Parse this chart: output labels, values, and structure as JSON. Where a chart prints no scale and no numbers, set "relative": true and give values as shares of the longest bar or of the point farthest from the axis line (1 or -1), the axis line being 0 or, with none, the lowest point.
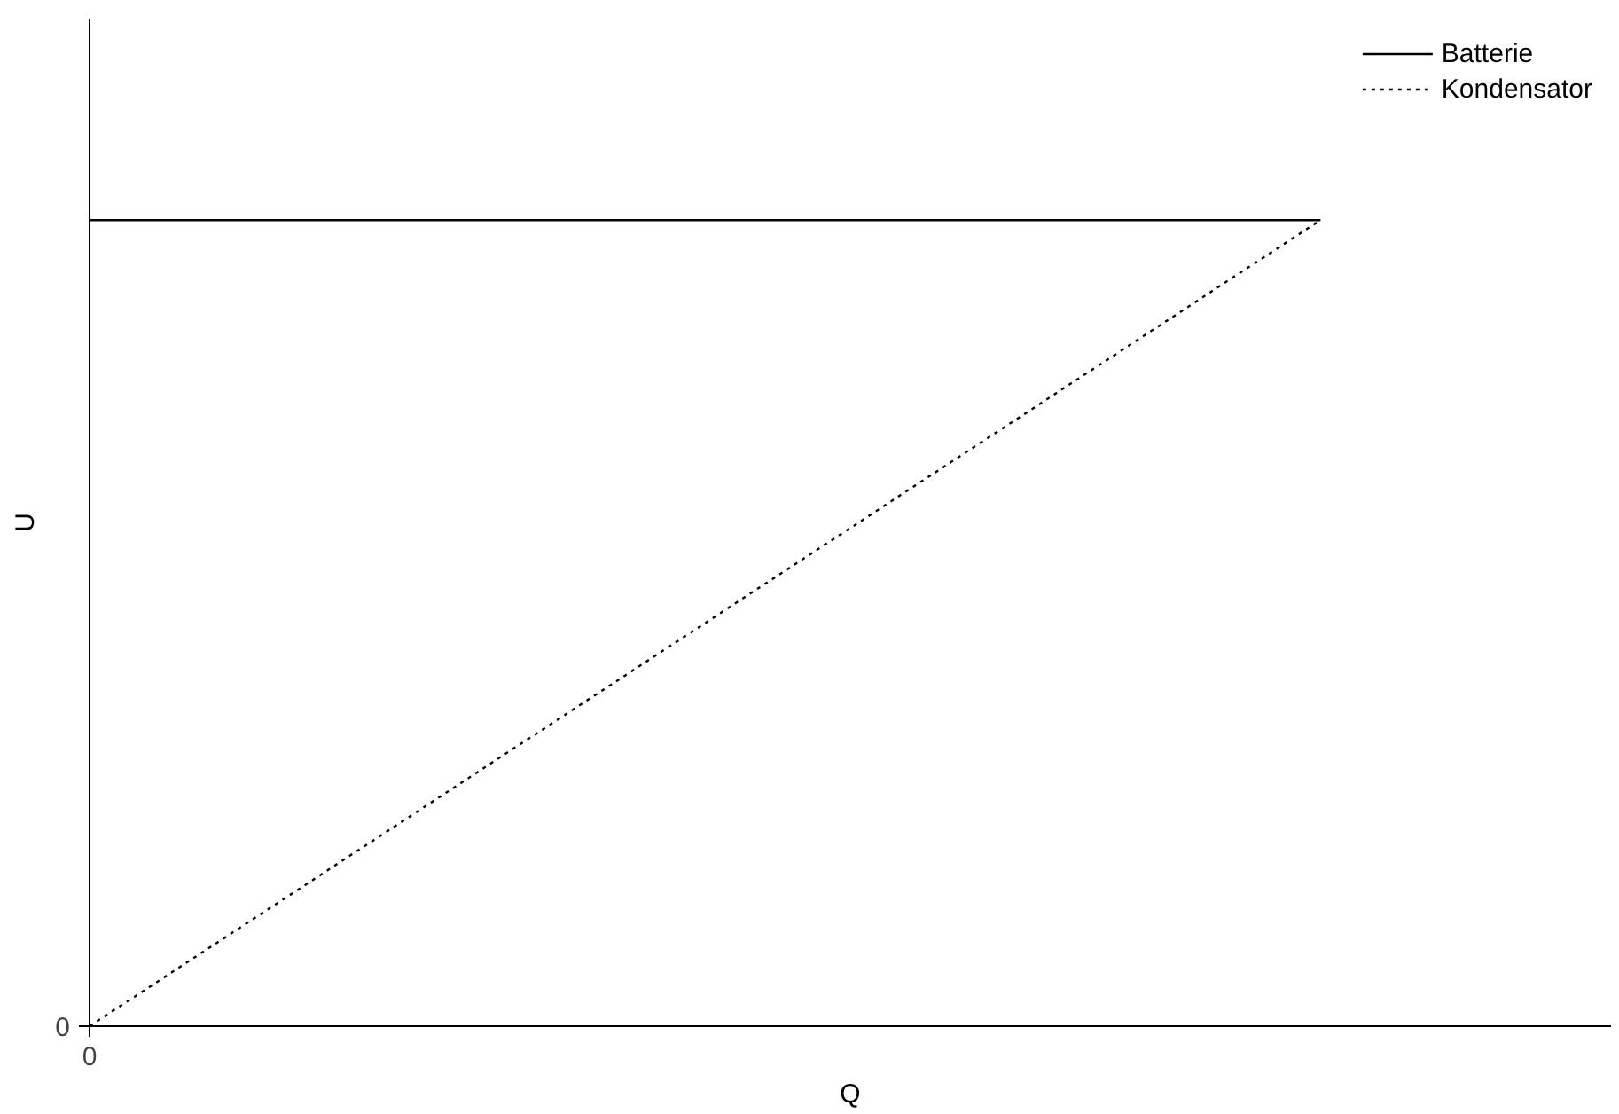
{
  "chart_data": {
    "type": "line",
    "relative": true,
    "xlabel": "Q",
    "ylabel": "U",
    "annotations": [
      "0",
      "0"
    ],
    "legend": "top right",
    "marker": "none",
    "categories": [
      null,
      null
    ],
    "series": [
      {
        "name": "Batterie",
        "color": "#000000",
        "values": [
          1,
          1
        ],
        "line_style": "solid"
      },
      {
        "name": "Kondensator",
        "color": "#000000",
        "values": [
          0,
          1
        ],
        "line_style": "dotted"
      }
    ]
  }
}
